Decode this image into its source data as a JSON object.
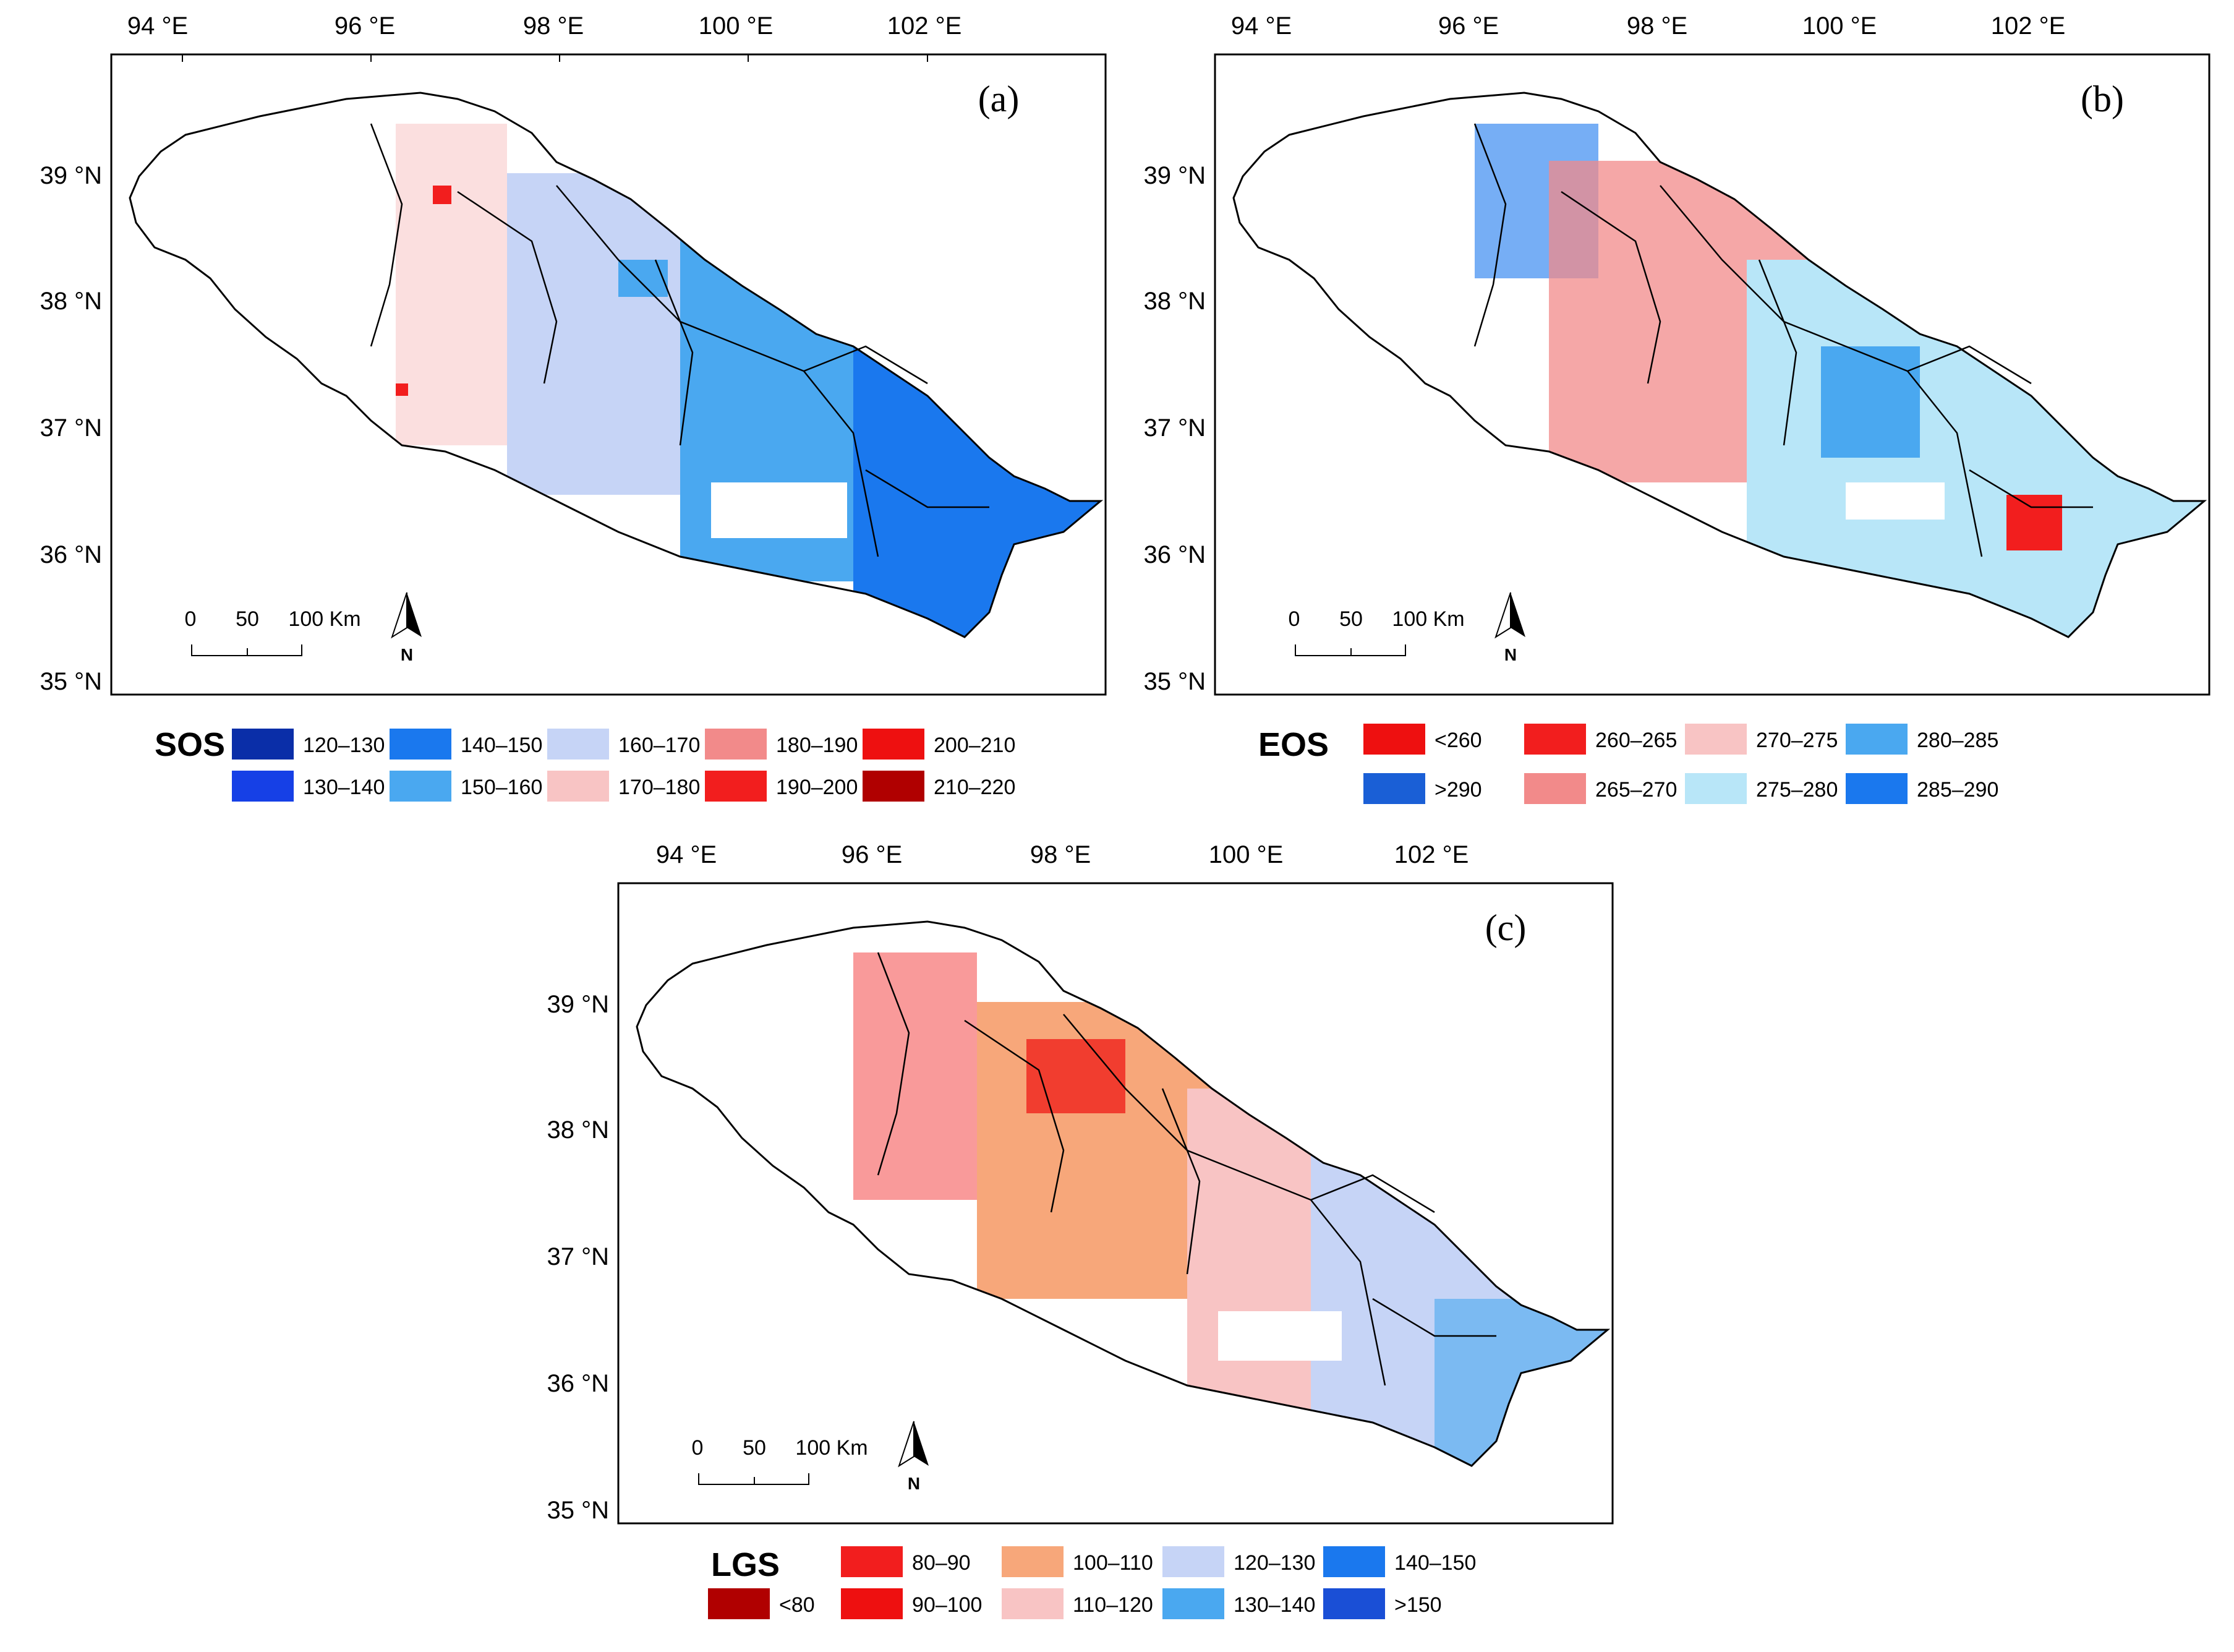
{
  "panels": [
    {
      "id": "a",
      "label": "(a)",
      "lon_ticks": [
        "94 °E",
        "96 °E",
        "98 °E",
        "100 °E",
        "102 °E"
      ],
      "lat_ticks": [
        "39 °N",
        "38 °N",
        "37 °N",
        "36 °N",
        "35 °N"
      ],
      "scalebar": {
        "t0": "0",
        "t1": "50",
        "t2": "100 Km"
      },
      "north": "N",
      "legend_title": "SOS",
      "legend_items": [
        {
          "label": "120–130",
          "color": "#0a2ea8"
        },
        {
          "label": "130–140",
          "color": "#1640e6"
        },
        {
          "label": "140–150",
          "color": "#1a78ee"
        },
        {
          "label": "150–160",
          "color": "#4aa8f0"
        },
        {
          "label": "160–170",
          "color": "#c6d4f6"
        },
        {
          "label": "170–180",
          "color": "#f8c4c4"
        },
        {
          "label": "180–190",
          "color": "#f28a8a"
        },
        {
          "label": "190–200",
          "color": "#f21e1e"
        },
        {
          "label": "200–210",
          "color": "#ee1010"
        },
        {
          "label": "210–220",
          "color": "#b00000"
        }
      ]
    },
    {
      "id": "b",
      "label": "(b)",
      "lon_ticks": [
        "94 °E",
        "96 °E",
        "98 °E",
        "100 °E",
        "102 °E"
      ],
      "lat_ticks": [
        "39 °N",
        "38 °N",
        "37 °N",
        "36 °N",
        "35 °N"
      ],
      "scalebar": {
        "t0": "0",
        "t1": "50",
        "t2": "100 Km"
      },
      "north": "N",
      "legend_title": "EOS",
      "legend_items": [
        {
          "label": "<260",
          "color": "#ee1010"
        },
        {
          "label": ">290",
          "color": "#1a5fd6"
        },
        {
          "label": "260–265",
          "color": "#f21e1e"
        },
        {
          "label": "265–270",
          "color": "#f28a8a"
        },
        {
          "label": "270–275",
          "color": "#f8c4c4"
        },
        {
          "label": "275–280",
          "color": "#b8e6f8"
        },
        {
          "label": "280–285",
          "color": "#4aa8f0"
        },
        {
          "label": "285–290",
          "color": "#1a78ee"
        }
      ]
    },
    {
      "id": "c",
      "label": "(c)",
      "lon_ticks": [
        "94 °E",
        "96 °E",
        "98 °E",
        "100 °E",
        "102 °E"
      ],
      "lat_ticks": [
        "39 °N",
        "38 °N",
        "37 °N",
        "36 °N",
        "35 °N"
      ],
      "scalebar": {
        "t0": "0",
        "t1": "50",
        "t2": "100 Km"
      },
      "north": "N",
      "legend_title": "LGS",
      "legend_items": [
        {
          "label": "<80",
          "color": "#b00000"
        },
        {
          "label": "80–90",
          "color": "#f21e1e"
        },
        {
          "label": "90–100",
          "color": "#ee1010"
        },
        {
          "label": "100–110",
          "color": "#f7a77a"
        },
        {
          "label": "110–120",
          "color": "#f8c4c4"
        },
        {
          "label": "120–130",
          "color": "#c6d4f6"
        },
        {
          "label": "130–140",
          "color": "#4aa8f0"
        },
        {
          "label": "140–150",
          "color": "#1a78ee"
        },
        {
          "label": ">150",
          "color": "#1a4fd6"
        }
      ]
    }
  ]
}
